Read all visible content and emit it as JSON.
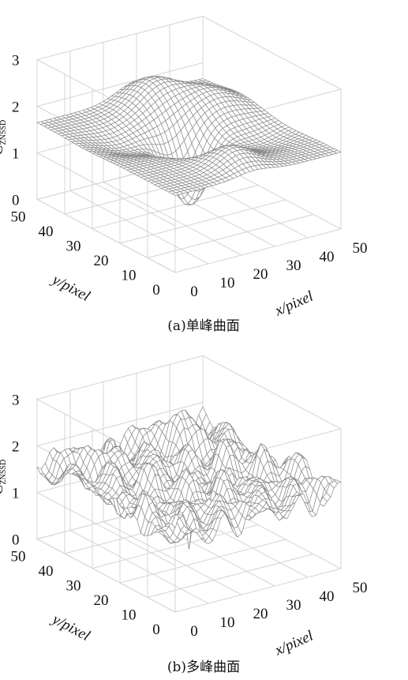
{
  "chart_data": [
    {
      "type": "surface",
      "caption": "(a)单峰曲面",
      "zlabel_main": "C",
      "zlabel_sub": "ZNSSD",
      "xlabel": "x/pixel",
      "ylabel": "y/pixel",
      "xlim": [
        0,
        50
      ],
      "ylim": [
        0,
        50
      ],
      "zlim": [
        0,
        3
      ],
      "xticks": [
        "0",
        "10",
        "20",
        "30",
        "40",
        "50"
      ],
      "yticks": [
        "0",
        "10",
        "20",
        "30",
        "40",
        "50"
      ],
      "zticks": [
        "0",
        "1",
        "2",
        "3"
      ],
      "min_point": {
        "x": 25,
        "y": 25,
        "z": 0.25
      },
      "baseline_z": 1.7
    },
    {
      "type": "surface",
      "caption": "(b)多峰曲面",
      "zlabel_main": "C",
      "zlabel_sub": "ZNSSD",
      "xlabel": "x/pixel",
      "ylabel": "y/pixel",
      "xlim": [
        0,
        50
      ],
      "ylim": [
        0,
        50
      ],
      "zlim": [
        0,
        3
      ],
      "xticks": [
        "0",
        "10",
        "20",
        "30",
        "40",
        "50"
      ],
      "yticks": [
        "0",
        "10",
        "20",
        "30",
        "40",
        "50"
      ],
      "zticks": [
        "0",
        "1",
        "2",
        "3"
      ],
      "min_point": {
        "x": 25,
        "y": 25,
        "z": 0.1
      },
      "baseline_z": 1.7
    }
  ]
}
